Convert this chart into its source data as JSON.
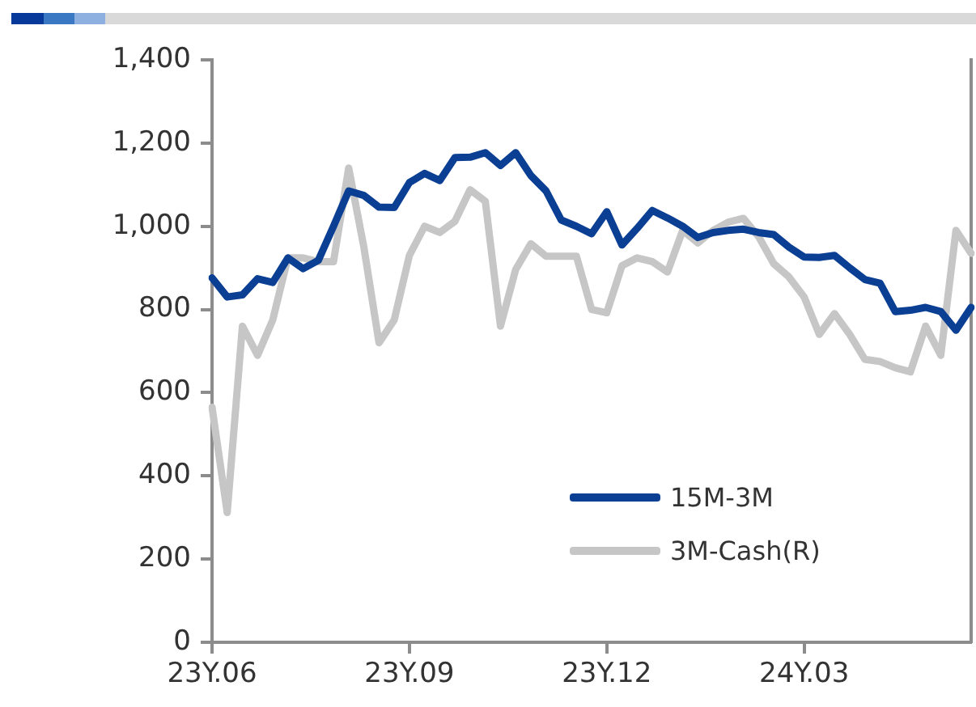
{
  "chart_data": {
    "type": "line",
    "categories": [
      "23Y.06",
      null,
      null,
      null,
      null,
      null,
      null,
      null,
      null,
      null,
      null,
      null,
      null,
      "23Y.09",
      null,
      null,
      null,
      null,
      null,
      null,
      null,
      null,
      null,
      null,
      null,
      null,
      "23Y.12",
      null,
      null,
      null,
      null,
      null,
      null,
      null,
      null,
      null,
      null,
      null,
      null,
      "24Y.03",
      null,
      null,
      null,
      null,
      null,
      null,
      null,
      null,
      null,
      null,
      null
    ],
    "series": [
      {
        "name": "15M-3M",
        "color": "#0b3f93",
        "values": [
          876,
          830,
          835,
          874,
          865,
          924,
          898,
          918,
          1000,
          1085,
          1074,
          1046,
          1045,
          1105,
          1127,
          1110,
          1165,
          1166,
          1177,
          1146,
          1177,
          1122,
          1085,
          1015,
          1000,
          982,
          1035,
          955,
          995,
          1038,
          1020,
          1000,
          973,
          985,
          990,
          993,
          985,
          980,
          950,
          926,
          925,
          930,
          900,
          872,
          863,
          795,
          798,
          805,
          795,
          750,
          805
        ]
      },
      {
        "name": "3M-Cash(R)",
        "color": "#c6c6c6",
        "values": [
          565,
          312,
          760,
          690,
          775,
          924,
          924,
          915,
          915,
          1140,
          950,
          720,
          775,
          930,
          1000,
          985,
          1012,
          1088,
          1060,
          760,
          896,
          958,
          928,
          928,
          928,
          800,
          792,
          905,
          924,
          915,
          890,
          990,
          960,
          990,
          1010,
          1019,
          975,
          910,
          878,
          830,
          740,
          790,
          740,
          680,
          675,
          660,
          650,
          760,
          690,
          990,
          935
        ]
      }
    ],
    "ylim": [
      0,
      1400
    ],
    "yticks": [
      0,
      200,
      400,
      600,
      800,
      {
        "value": 1000,
        "label": "1,000"
      },
      {
        "value": 1200,
        "label": "1,200"
      },
      {
        "value": 1400,
        "label": "1,400"
      }
    ],
    "grid": false,
    "legend": "bottom right",
    "marker": "none",
    "line_style": "solid"
  }
}
